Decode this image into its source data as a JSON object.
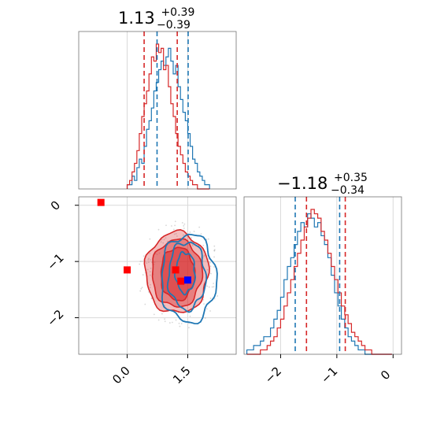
{
  "chart_data": {
    "type": "corner",
    "colors": {
      "series_blue": "#1f77b4",
      "series_red": "#d62728",
      "marker_red": "#ff0000",
      "marker_blue": "#0000ff",
      "grid": "#d9d9d9"
    },
    "grid": true,
    "param1": {
      "title_value": "1.13",
      "title_plus": "+0.39",
      "title_minus": "−0.39",
      "range": [
        -1.2,
        2.7
      ],
      "ticks": [
        0.0,
        1.5
      ],
      "tick_labels": [
        "0.0",
        "1.5"
      ],
      "quantiles": {
        "blue": [
          0.74,
          1.51
        ],
        "red": [
          0.42,
          1.24
        ]
      }
    },
    "param2": {
      "title_value": "−1.18",
      "title_plus": "+0.35",
      "title_minus": "−0.34",
      "range": [
        -2.65,
        0.15
      ],
      "ticks": [
        -2,
        -1,
        0
      ],
      "tick_labels": [
        "−2",
        "−1",
        "0"
      ],
      "quantiles": {
        "blue": [
          -1.74,
          -0.95
        ],
        "red": [
          -1.54,
          -0.85
        ]
      }
    },
    "hist1": {
      "bin_start": 0.0,
      "bin_width": 0.06,
      "blue": [
        1,
        1,
        3,
        2,
        5,
        7,
        6,
        10,
        14,
        16,
        19,
        23,
        25,
        28,
        30,
        29,
        31,
        33,
        30,
        27,
        29,
        24,
        21,
        18,
        16,
        13,
        10,
        7,
        6,
        4,
        3,
        2,
        1,
        1
      ],
      "red": [
        1,
        2,
        4,
        6,
        9,
        13,
        17,
        20,
        23,
        27,
        31,
        30,
        34,
        32,
        33,
        28,
        29,
        24,
        20,
        17,
        13,
        10,
        8,
        6,
        4,
        3,
        2,
        1,
        1,
        0,
        0,
        0,
        0,
        0
      ]
    },
    "hist2": {
      "bin_start": -2.6,
      "bin_width": 0.06,
      "blue": [
        1,
        1,
        2,
        2,
        3,
        4,
        4,
        6,
        8,
        10,
        13,
        17,
        20,
        22,
        25,
        28,
        30,
        29,
        32,
        31,
        29,
        30,
        27,
        25,
        22,
        18,
        14,
        11,
        8,
        6,
        4,
        3,
        2,
        1,
        1,
        0,
        0,
        0,
        0,
        0,
        0,
        0,
        0
      ],
      "red": [
        0,
        0,
        0,
        0,
        1,
        1,
        2,
        3,
        4,
        6,
        8,
        11,
        14,
        17,
        20,
        23,
        26,
        29,
        31,
        33,
        32,
        31,
        28,
        26,
        23,
        20,
        17,
        14,
        11,
        9,
        7,
        5,
        4,
        3,
        2,
        1,
        1,
        0,
        0,
        0,
        0,
        0,
        0
      ]
    },
    "contours2d": {
      "red": [
        {
          "cx": 1.23,
          "cy": -1.2,
          "rx": 0.78,
          "ry": 0.72,
          "fill_opacity": 0.55
        },
        {
          "cx": 1.23,
          "cy": -1.21,
          "rx": 0.62,
          "ry": 0.6,
          "fill_opacity": 0.75
        },
        {
          "cx": 1.25,
          "cy": -1.22,
          "rx": 0.42,
          "ry": 0.47,
          "fill_opacity": 0.95
        }
      ],
      "blue": [
        {
          "cx": 1.52,
          "cy": -1.3,
          "rx": 0.68,
          "ry": 0.78
        },
        {
          "cx": 1.48,
          "cy": -1.25,
          "rx": 0.46,
          "ry": 0.6
        },
        {
          "cx": 1.44,
          "cy": -1.2,
          "rx": 0.24,
          "ry": 0.36
        }
      ]
    },
    "markers2d": [
      {
        "x": -0.65,
        "y": 0.05,
        "color": "marker_red"
      },
      {
        "x": 0.0,
        "y": -1.15,
        "color": "marker_red"
      },
      {
        "x": 1.2,
        "y": -1.15,
        "color": "marker_red"
      },
      {
        "x": 1.33,
        "y": -1.35,
        "color": "marker_red"
      },
      {
        "x": 1.5,
        "y": -1.33,
        "color": "marker_blue"
      }
    ]
  }
}
